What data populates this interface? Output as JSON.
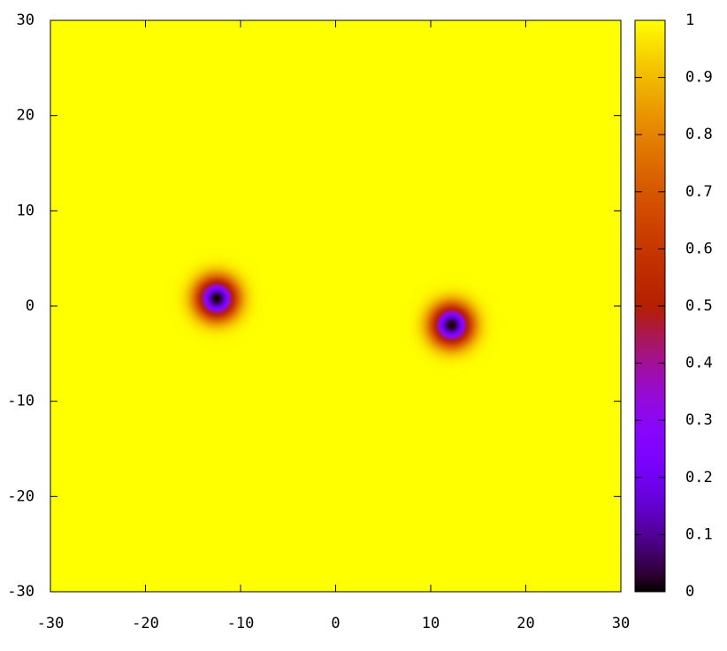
{
  "chart_data": {
    "type": "heatmap",
    "x": [
      -12.5,
      12.2
    ],
    "y": [
      0.8,
      -2
    ],
    "values": [
      0,
      0
    ],
    "xlim": [
      -30,
      30
    ],
    "xticks": [
      -30,
      -20,
      -10,
      0,
      10,
      20,
      30
    ],
    "ylim": [
      -30,
      30
    ],
    "yticks": [
      -30,
      -20,
      -10,
      0,
      10,
      20,
      30
    ],
    "zlim": [
      0,
      1
    ],
    "zticks": [
      0,
      0.1,
      0.2,
      0.3,
      0.4,
      0.5,
      0.6,
      0.7,
      0.8,
      0.9,
      1
    ],
    "palette": "rgbformulae 7,5,15"
  }
}
